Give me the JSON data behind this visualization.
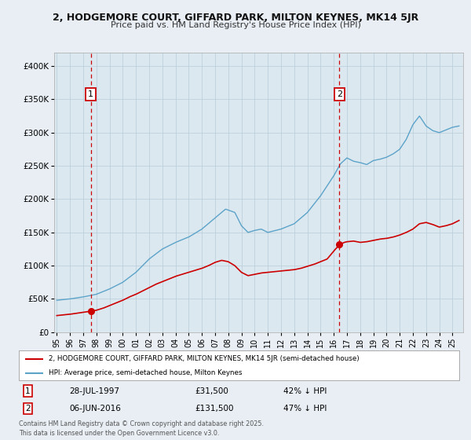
{
  "title_line1": "2, HODGEMORE COURT, GIFFARD PARK, MILTON KEYNES, MK14 5JR",
  "title_line2": "Price paid vs. HM Land Registry's House Price Index (HPI)",
  "background_color": "#e8eef4",
  "plot_bg_color": "#dce8f0",
  "grid_color": "#b8ccd8",
  "sale1_date": 1997.57,
  "sale1_price": 31500,
  "sale2_date": 2016.43,
  "sale2_price": 131500,
  "hpi_line_color": "#5ba3c9",
  "price_line_color": "#cc0000",
  "legend_label_price": "2, HODGEMORE COURT, GIFFARD PARK, MILTON KEYNES, MK14 5JR (semi-detached house)",
  "legend_label_hpi": "HPI: Average price, semi-detached house, Milton Keynes",
  "annotation1_date_str": "28-JUL-1997",
  "annotation1_price_str": "£31,500",
  "annotation1_hpi_str": "42% ↓ HPI",
  "annotation2_date_str": "06-JUN-2016",
  "annotation2_price_str": "£131,500",
  "annotation2_hpi_str": "47% ↓ HPI",
  "footer_text": "Contains HM Land Registry data © Crown copyright and database right 2025.\nThis data is licensed under the Open Government Licence v3.0.",
  "ylim_max": 420000,
  "xmin": 1994.8,
  "xmax": 2025.8,
  "yticks": [
    0,
    50000,
    100000,
    150000,
    200000,
    250000,
    300000,
    350000,
    400000
  ],
  "ytick_labels": [
    "£0",
    "£50K",
    "£100K",
    "£150K",
    "£200K",
    "£250K",
    "£300K",
    "£350K",
    "£400K"
  ]
}
